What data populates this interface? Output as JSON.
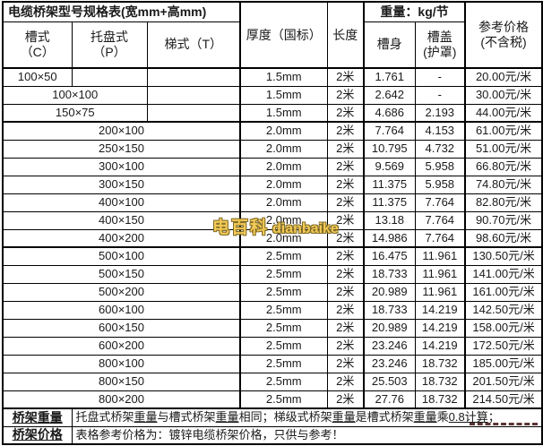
{
  "watermark": {
    "cn": "电百科",
    "en": "dianbaike",
    "fill_color": "#f4c84f",
    "outline_color": "#7a651c"
  },
  "table": {
    "title": "电缆桥架型号规格表(宽mm+高mm)",
    "headers": {
      "trough": "槽式\n（C）",
      "tray": "托盘式\n（P）",
      "ladder": "梯式（T）",
      "thickness": "厚度（国标）",
      "length": "长度",
      "weight_group": "重量：kg/节",
      "body": "槽身",
      "cover": "槽盖\n(护罩)",
      "price": "参考价格\n(不含税)"
    },
    "rows": [
      {
        "spec": "100×50",
        "span": 1,
        "thickness": "1.5mm",
        "length": "2米",
        "body": "1.761",
        "cover": "-",
        "price": "20.00元/米"
      },
      {
        "spec": "100×100",
        "span": 2,
        "thickness": "1.5mm",
        "length": "2米",
        "body": "2.642",
        "cover": "-",
        "price": "30.00元/米"
      },
      {
        "spec": "150×75",
        "span": 2,
        "thickness": "1.5mm",
        "length": "2米",
        "body": "4.686",
        "cover": "2.193",
        "price": "44.00元/米"
      },
      {
        "spec": "200×100",
        "span": 3,
        "thickness": "2.0mm",
        "length": "2米",
        "body": "7.764",
        "cover": "4.153",
        "price": "61.00元/米"
      },
      {
        "spec": "250×150",
        "span": 3,
        "thickness": "2.0mm",
        "length": "2米",
        "body": "10.795",
        "cover": "4.732",
        "price": "51.00元/米"
      },
      {
        "spec": "300×100",
        "span": 3,
        "thickness": "2.0mm",
        "length": "2米",
        "body": "9.569",
        "cover": "5.958",
        "price": "66.80元/米"
      },
      {
        "spec": "300×150",
        "span": 3,
        "thickness": "2.0mm",
        "length": "2米",
        "body": "11.375",
        "cover": "5.958",
        "price": "74.80元/米"
      },
      {
        "spec": "400×100",
        "span": 3,
        "thickness": "2.0mm",
        "length": "2米",
        "body": "11.375",
        "cover": "7.764",
        "price": "82.80元/米"
      },
      {
        "spec": "400×150",
        "span": 3,
        "thickness": "2.0mm",
        "length": "2米",
        "body": "13.18",
        "cover": "7.764",
        "price": "90.70元/米"
      },
      {
        "spec": "400×200",
        "span": 3,
        "thickness": "2.0mm",
        "length": "2米",
        "body": "14.986",
        "cover": "7.764",
        "price": "98.60元/米"
      },
      {
        "spec": "500×100",
        "span": 3,
        "thickness": "2.5mm",
        "length": "2米",
        "body": "16.475",
        "cover": "11.961",
        "price": "130.50元/米"
      },
      {
        "spec": "500×150",
        "span": 3,
        "thickness": "2.5mm",
        "length": "2米",
        "body": "18.733",
        "cover": "11.961",
        "price": "141.00元/米"
      },
      {
        "spec": "500×200",
        "span": 3,
        "thickness": "2.5mm",
        "length": "2米",
        "body": "20.989",
        "cover": "11.961",
        "price": "161.00元/米"
      },
      {
        "spec": "600×100",
        "span": 3,
        "thickness": "2.5mm",
        "length": "2米",
        "body": "18.733",
        "cover": "14.219",
        "price": "142.50元/米"
      },
      {
        "spec": "600×150",
        "span": 3,
        "thickness": "2.5mm",
        "length": "2米",
        "body": "20.989",
        "cover": "14.219",
        "price": "158.00元/米"
      },
      {
        "spec": "600×200",
        "span": 3,
        "thickness": "2.5mm",
        "length": "2米",
        "body": "23.246",
        "cover": "14.219",
        "price": "172.50元/米"
      },
      {
        "spec": "800×100",
        "span": 3,
        "thickness": "2.5mm",
        "length": "2米",
        "body": "23.246",
        "cover": "18.732",
        "price": "185.00元/米"
      },
      {
        "spec": "800×150",
        "span": 3,
        "thickness": "2.5mm",
        "length": "2米",
        "body": "25.503",
        "cover": "18.732",
        "price": "201.50元/米"
      },
      {
        "spec": "800×200",
        "span": 3,
        "thickness": "2.5mm",
        "length": "2米",
        "body": "27.76",
        "cover": "18.732",
        "price": "214.50元/米"
      }
    ],
    "notes": [
      {
        "label": "桥架重量",
        "segments": [
          {
            "text": "托盘式桥架",
            "u": false
          },
          {
            "text": "重量",
            "u": true
          },
          {
            "text": "与槽式桥架",
            "u": false
          },
          {
            "text": "重量",
            "u": true
          },
          {
            "text": "相同；梯级式桥架",
            "u": false
          },
          {
            "text": "重量",
            "u": true
          },
          {
            "text": "是槽式桥架",
            "u": false
          },
          {
            "text": "重量",
            "u": true
          },
          {
            "text": "乘",
            "u": false
          },
          {
            "text": "0.8计算",
            "u": true
          },
          {
            "text": "；",
            "u": false
          }
        ]
      },
      {
        "label": "桥架价格",
        "segments": [
          {
            "text": "表格参考价格为：镀锌电缆桥架价格，只供与参考！",
            "u": false
          }
        ]
      }
    ]
  }
}
